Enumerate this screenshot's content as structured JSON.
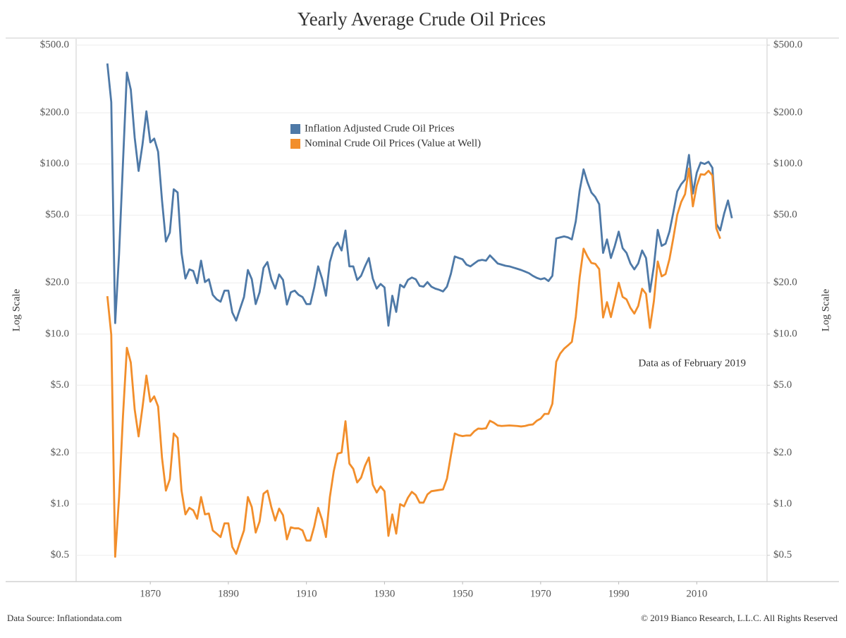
{
  "chart_data": {
    "type": "line",
    "title": "Yearly Average Crude Oil Prices",
    "ylabel": "Log Scale",
    "y2label": "Log Scale",
    "annotation": "Data as of February 2019",
    "source": "Data Source: Inflationdata.com",
    "copyright": "© 2019 Bianco Research, L.L.C. All Rights Reserved",
    "log_scale": true,
    "grid": true,
    "legend_position": "top",
    "xlim": [
      1851,
      2028
    ],
    "xticks": [
      1870,
      1890,
      1910,
      1930,
      1950,
      1970,
      1990,
      2010
    ],
    "ylim": [
      0.35,
      545
    ],
    "yticks": [
      {
        "value": 0.5,
        "label": "$0.5"
      },
      {
        "value": 1,
        "label": "$1.0"
      },
      {
        "value": 2,
        "label": "$2.0"
      },
      {
        "value": 5,
        "label": "$5.0"
      },
      {
        "value": 10,
        "label": "$10.0"
      },
      {
        "value": 20,
        "label": "$20.0"
      },
      {
        "value": 50,
        "label": "$50.0"
      },
      {
        "value": 100,
        "label": "$100.0"
      },
      {
        "value": 200,
        "label": "$200.0"
      },
      {
        "value": 500,
        "label": "$500.0"
      }
    ],
    "y2lim": [
      0.35,
      545
    ],
    "y2ticks": [
      {
        "value": 0.5,
        "label": "$0.5"
      },
      {
        "value": 1,
        "label": "$1.0"
      },
      {
        "value": 2,
        "label": "$2.0"
      },
      {
        "value": 5,
        "label": "$5.0"
      },
      {
        "value": 10,
        "label": "$10.0"
      },
      {
        "value": 20,
        "label": "$20.0"
      },
      {
        "value": 50,
        "label": "$50.0"
      },
      {
        "value": 100,
        "label": "$100.0"
      },
      {
        "value": 200,
        "label": "$200.0"
      },
      {
        "value": 500,
        "label": "$500.0"
      }
    ],
    "x": [
      1859,
      1860,
      1861,
      1862,
      1863,
      1864,
      1865,
      1866,
      1867,
      1868,
      1869,
      1870,
      1871,
      1872,
      1873,
      1874,
      1875,
      1876,
      1877,
      1878,
      1879,
      1880,
      1881,
      1882,
      1883,
      1884,
      1885,
      1886,
      1887,
      1888,
      1889,
      1890,
      1891,
      1892,
      1893,
      1894,
      1895,
      1896,
      1897,
      1898,
      1899,
      1900,
      1901,
      1902,
      1903,
      1904,
      1905,
      1906,
      1907,
      1908,
      1909,
      1910,
      1911,
      1912,
      1913,
      1914,
      1915,
      1916,
      1917,
      1918,
      1919,
      1920,
      1921,
      1922,
      1923,
      1924,
      1925,
      1926,
      1927,
      1928,
      1929,
      1930,
      1931,
      1932,
      1933,
      1934,
      1935,
      1936,
      1937,
      1938,
      1939,
      1940,
      1941,
      1942,
      1943,
      1944,
      1945,
      1946,
      1947,
      1948,
      1949,
      1950,
      1951,
      1952,
      1953,
      1954,
      1955,
      1956,
      1957,
      1958,
      1959,
      1960,
      1961,
      1962,
      1963,
      1964,
      1965,
      1966,
      1967,
      1968,
      1969,
      1970,
      1971,
      1972,
      1973,
      1974,
      1975,
      1976,
      1977,
      1978,
      1979,
      1980,
      1981,
      1982,
      1983,
      1984,
      1985,
      1986,
      1987,
      1988,
      1989,
      1990,
      1991,
      1992,
      1993,
      1994,
      1995,
      1996,
      1997,
      1998,
      1999,
      2000,
      2001,
      2002,
      2003,
      2004,
      2005,
      2006,
      2007,
      2008,
      2009,
      2010,
      2011,
      2012,
      2013,
      2014,
      2015,
      2016,
      2017,
      2018,
      2019
    ],
    "series": [
      {
        "name": "Inflation Adjusted Crude Oil Prices",
        "color": "#4e79a7",
        "values": [
          390,
          231,
          11.6,
          29.6,
          102,
          345,
          274,
          143,
          91,
          130,
          204,
          134,
          141,
          118,
          61,
          35,
          39.5,
          71,
          68,
          30,
          21.2,
          24,
          23.5,
          19.9,
          27,
          20.2,
          21,
          17,
          16,
          15.5,
          18,
          18,
          13.4,
          12,
          14.1,
          16.5,
          23.8,
          21,
          15,
          17.6,
          24.5,
          26.5,
          21,
          18.5,
          22.4,
          20.8,
          14.9,
          17.6,
          18,
          17,
          16.5,
          15,
          15,
          18.8,
          25,
          21.2,
          16.8,
          26.5,
          32,
          34.5,
          31,
          40.6,
          25,
          25,
          20.8,
          22,
          25,
          28,
          21.2,
          18.5,
          19.7,
          18.8,
          11.2,
          16.8,
          13.5,
          19.5,
          18.8,
          20.8,
          21.5,
          21,
          19.2,
          19,
          20.2,
          19,
          18.5,
          18.2,
          17.8,
          19,
          22.6,
          28.6,
          28,
          27.5,
          25.6,
          25,
          26,
          27,
          27.3,
          27,
          29,
          27.5,
          26,
          25.6,
          25.2,
          25,
          24.6,
          24.2,
          23.8,
          23.3,
          22.8,
          22,
          21.4,
          21,
          21.3,
          20.5,
          22,
          36.5,
          37,
          37.5,
          37,
          36,
          46,
          70,
          93,
          78,
          68,
          64,
          58,
          30,
          36,
          28,
          33,
          40,
          32,
          30,
          26,
          24,
          26,
          31,
          28,
          17.7,
          25,
          41,
          33,
          34,
          40,
          52,
          69,
          76,
          81,
          113,
          67,
          89,
          102,
          100,
          103,
          95,
          44.5,
          40.7,
          51,
          61,
          48
        ]
      },
      {
        "name": "Nominal Crude Oil Prices (Value at Well)",
        "color": "#f28e2b",
        "axis": "y2",
        "values": [
          16.7,
          9.9,
          0.49,
          1.1,
          3.3,
          8.3,
          6.8,
          3.6,
          2.5,
          3.7,
          5.7,
          4.0,
          4.3,
          3.75,
          1.87,
          1.2,
          1.4,
          2.6,
          2.45,
          1.2,
          0.87,
          0.95,
          0.92,
          0.82,
          1.1,
          0.87,
          0.88,
          0.7,
          0.67,
          0.64,
          0.77,
          0.77,
          0.56,
          0.51,
          0.6,
          0.7,
          1.1,
          0.96,
          0.68,
          0.79,
          1.15,
          1.2,
          0.96,
          0.8,
          0.94,
          0.86,
          0.62,
          0.73,
          0.72,
          0.72,
          0.7,
          0.61,
          0.61,
          0.74,
          0.95,
          0.81,
          0.64,
          1.1,
          1.56,
          1.98,
          2.01,
          3.07,
          1.73,
          1.61,
          1.34,
          1.43,
          1.68,
          1.88,
          1.3,
          1.17,
          1.27,
          1.19,
          0.65,
          0.87,
          0.67,
          1.0,
          0.97,
          1.09,
          1.18,
          1.13,
          1.02,
          1.02,
          1.14,
          1.19,
          1.2,
          1.21,
          1.22,
          1.41,
          1.93,
          2.6,
          2.54,
          2.51,
          2.53,
          2.53,
          2.68,
          2.78,
          2.77,
          2.79,
          3.09,
          3.01,
          2.9,
          2.88,
          2.89,
          2.9,
          2.89,
          2.88,
          2.86,
          2.88,
          2.92,
          2.94,
          3.09,
          3.18,
          3.39,
          3.39,
          3.89,
          6.87,
          7.67,
          8.19,
          8.57,
          9.0,
          12.64,
          21.59,
          31.77,
          28.52,
          26.19,
          25.88,
          24.09,
          12.51,
          15.4,
          12.58,
          15.86,
          20.03,
          16.54,
          15.99,
          14.25,
          13.19,
          14.62,
          18.46,
          17.23,
          10.87,
          15.56,
          26.72,
          21.84,
          22.51,
          27.56,
          36.77,
          50.28,
          59.69,
          66.52,
          94.04,
          56.35,
          74.71,
          87.04,
          86.46,
          91.17,
          85.6,
          41.85,
          36.34,
          null,
          null,
          null
        ]
      }
    ]
  }
}
